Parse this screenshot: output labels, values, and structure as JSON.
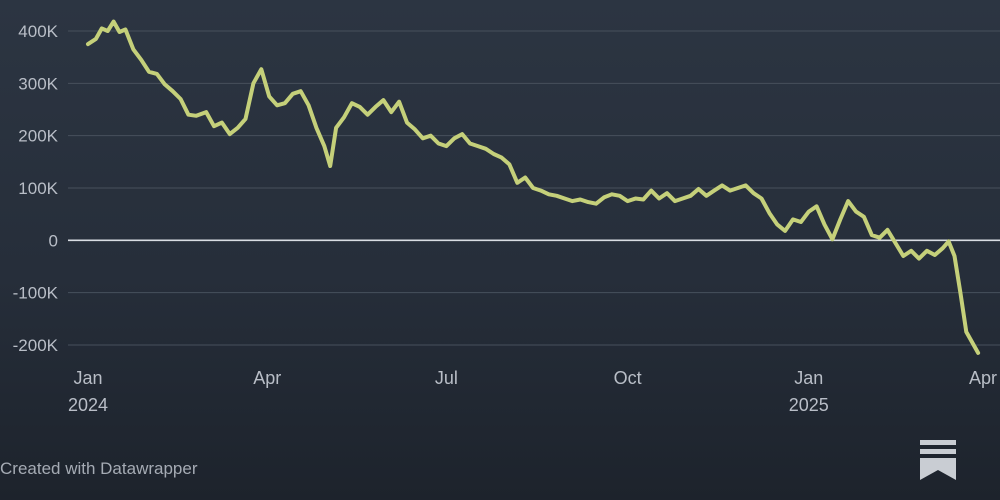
{
  "credit": "Created with Datawrapper",
  "logo_icon": "substack-logo-icon",
  "chart_data": {
    "type": "line",
    "title": "",
    "xlabel": "",
    "ylabel": "",
    "ylim": [
      -220000,
      430000
    ],
    "yticks": [
      {
        "value": 400000,
        "label": "400K"
      },
      {
        "value": 300000,
        "label": "300K"
      },
      {
        "value": 200000,
        "label": "200K"
      },
      {
        "value": 100000,
        "label": "100K"
      },
      {
        "value": 0,
        "label": "0"
      },
      {
        "value": -100000,
        "label": "-100K"
      },
      {
        "value": -200000,
        "label": "-200K"
      }
    ],
    "xticks": [
      {
        "date": "2024-01-01",
        "label": "Jan",
        "sublabel": "2024"
      },
      {
        "date": "2024-04-01",
        "label": "Apr",
        "sublabel": ""
      },
      {
        "date": "2024-07-01",
        "label": "Jul",
        "sublabel": ""
      },
      {
        "date": "2024-10-01",
        "label": "Oct",
        "sublabel": ""
      },
      {
        "date": "2025-01-01",
        "label": "Jan",
        "sublabel": "2025"
      },
      {
        "date": "2025-04-01",
        "label": "Apr",
        "sublabel": ""
      }
    ],
    "grid": true,
    "line_color": "#c5d07a",
    "zero_line_color": "#d9dde3",
    "series": [
      {
        "points": [
          [
            "2024-01-01",
            375000
          ],
          [
            "2024-01-05",
            385000
          ],
          [
            "2024-01-08",
            405000
          ],
          [
            "2024-01-11",
            400000
          ],
          [
            "2024-01-14",
            418000
          ],
          [
            "2024-01-17",
            398000
          ],
          [
            "2024-01-20",
            403000
          ],
          [
            "2024-01-24",
            365000
          ],
          [
            "2024-01-28",
            345000
          ],
          [
            "2024-02-01",
            322000
          ],
          [
            "2024-02-05",
            318000
          ],
          [
            "2024-02-09",
            298000
          ],
          [
            "2024-02-13",
            285000
          ],
          [
            "2024-02-17",
            270000
          ],
          [
            "2024-02-21",
            240000
          ],
          [
            "2024-02-25",
            238000
          ],
          [
            "2024-03-01",
            245000
          ],
          [
            "2024-03-05",
            218000
          ],
          [
            "2024-03-09",
            225000
          ],
          [
            "2024-03-13",
            203000
          ],
          [
            "2024-03-17",
            215000
          ],
          [
            "2024-03-21",
            232000
          ],
          [
            "2024-03-25",
            300000
          ],
          [
            "2024-03-29",
            327000
          ],
          [
            "2024-04-02",
            275000
          ],
          [
            "2024-04-06",
            258000
          ],
          [
            "2024-04-10",
            262000
          ],
          [
            "2024-04-14",
            280000
          ],
          [
            "2024-04-18",
            285000
          ],
          [
            "2024-04-22",
            258000
          ],
          [
            "2024-04-26",
            215000
          ],
          [
            "2024-04-30",
            180000
          ],
          [
            "2024-05-03",
            142000
          ],
          [
            "2024-05-06",
            215000
          ],
          [
            "2024-05-10",
            235000
          ],
          [
            "2024-05-14",
            262000
          ],
          [
            "2024-05-18",
            255000
          ],
          [
            "2024-05-22",
            240000
          ],
          [
            "2024-05-26",
            255000
          ],
          [
            "2024-05-30",
            268000
          ],
          [
            "2024-06-03",
            245000
          ],
          [
            "2024-06-07",
            265000
          ],
          [
            "2024-06-11",
            225000
          ],
          [
            "2024-06-15",
            212000
          ],
          [
            "2024-06-19",
            195000
          ],
          [
            "2024-06-23",
            200000
          ],
          [
            "2024-06-27",
            185000
          ],
          [
            "2024-07-01",
            180000
          ],
          [
            "2024-07-05",
            195000
          ],
          [
            "2024-07-09",
            203000
          ],
          [
            "2024-07-13",
            185000
          ],
          [
            "2024-07-17",
            180000
          ],
          [
            "2024-07-21",
            175000
          ],
          [
            "2024-07-25",
            165000
          ],
          [
            "2024-07-29",
            158000
          ],
          [
            "2024-08-02",
            145000
          ],
          [
            "2024-08-06",
            110000
          ],
          [
            "2024-08-10",
            120000
          ],
          [
            "2024-08-14",
            100000
          ],
          [
            "2024-08-18",
            95000
          ],
          [
            "2024-08-22",
            88000
          ],
          [
            "2024-08-26",
            85000
          ],
          [
            "2024-08-30",
            80000
          ],
          [
            "2024-09-03",
            75000
          ],
          [
            "2024-09-07",
            78000
          ],
          [
            "2024-09-11",
            73000
          ],
          [
            "2024-09-15",
            70000
          ],
          [
            "2024-09-19",
            82000
          ],
          [
            "2024-09-23",
            88000
          ],
          [
            "2024-09-27",
            85000
          ],
          [
            "2024-10-01",
            75000
          ],
          [
            "2024-10-05",
            80000
          ],
          [
            "2024-10-09",
            78000
          ],
          [
            "2024-10-13",
            95000
          ],
          [
            "2024-10-17",
            80000
          ],
          [
            "2024-10-21",
            90000
          ],
          [
            "2024-10-25",
            75000
          ],
          [
            "2024-10-29",
            80000
          ],
          [
            "2024-11-02",
            85000
          ],
          [
            "2024-11-06",
            98000
          ],
          [
            "2024-11-10",
            85000
          ],
          [
            "2024-11-14",
            95000
          ],
          [
            "2024-11-18",
            105000
          ],
          [
            "2024-11-22",
            95000
          ],
          [
            "2024-11-26",
            100000
          ],
          [
            "2024-11-30",
            105000
          ],
          [
            "2024-12-04",
            90000
          ],
          [
            "2024-12-08",
            80000
          ],
          [
            "2024-12-12",
            52000
          ],
          [
            "2024-12-16",
            30000
          ],
          [
            "2024-12-20",
            18000
          ],
          [
            "2024-12-24",
            40000
          ],
          [
            "2024-12-28",
            35000
          ],
          [
            "2025-01-01",
            55000
          ],
          [
            "2025-01-05",
            65000
          ],
          [
            "2025-01-09",
            30000
          ],
          [
            "2025-01-13",
            2000
          ],
          [
            "2025-01-17",
            40000
          ],
          [
            "2025-01-21",
            75000
          ],
          [
            "2025-01-25",
            55000
          ],
          [
            "2025-01-29",
            45000
          ],
          [
            "2025-02-02",
            10000
          ],
          [
            "2025-02-06",
            5000
          ],
          [
            "2025-02-10",
            20000
          ],
          [
            "2025-02-14",
            -5000
          ],
          [
            "2025-02-18",
            -30000
          ],
          [
            "2025-02-22",
            -20000
          ],
          [
            "2025-02-26",
            -35000
          ],
          [
            "2025-03-02",
            -20000
          ],
          [
            "2025-03-06",
            -28000
          ],
          [
            "2025-03-10",
            -15000
          ],
          [
            "2025-03-13",
            -2000
          ],
          [
            "2025-03-16",
            -30000
          ],
          [
            "2025-03-19",
            -100000
          ],
          [
            "2025-03-22",
            -175000
          ],
          [
            "2025-03-25",
            -195000
          ],
          [
            "2025-03-28",
            -215000
          ]
        ]
      }
    ]
  }
}
